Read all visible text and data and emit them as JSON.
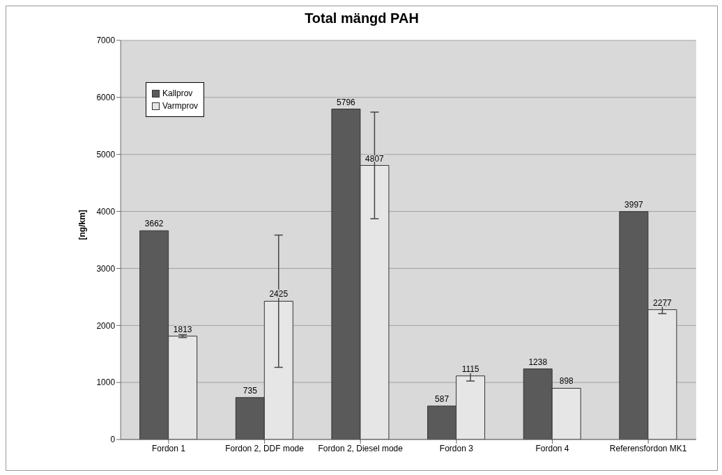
{
  "chart_data": {
    "type": "bar",
    "title": "Total mängd PAH",
    "ylabel": "[ng/km]",
    "categories": [
      "Fordon 1",
      "Fordon 2, DDF mode",
      "Fordon 2, Diesel mode",
      "Fordon 3",
      "Fordon 4",
      "Referensfordon MK1"
    ],
    "series": [
      {
        "name": "Kallprov",
        "color": "#5a5a5a",
        "values": [
          3662,
          735,
          5796,
          587,
          1238,
          3997
        ]
      },
      {
        "name": "Varmprov",
        "color": "#e6e6e6",
        "values": [
          1813,
          2425,
          4807,
          1115,
          898,
          2277
        ],
        "errors": [
          25,
          1160,
          935,
          90,
          null,
          70
        ]
      }
    ],
    "ylim": [
      0,
      7000
    ],
    "yticks": [
      0,
      1000,
      2000,
      3000,
      4000,
      5000,
      6000,
      7000
    ],
    "grid": "y",
    "legend": "top left",
    "data_labels": true
  }
}
